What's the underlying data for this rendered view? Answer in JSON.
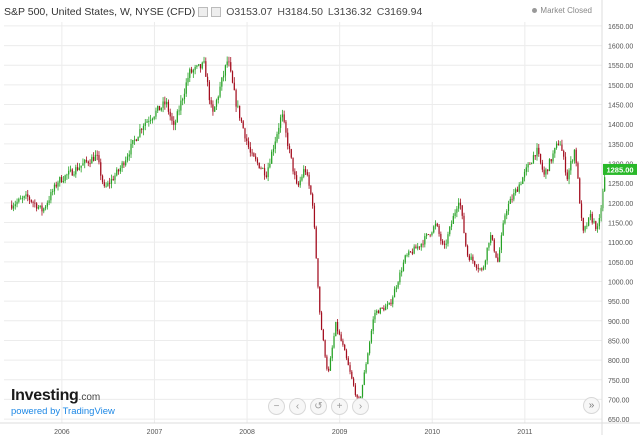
{
  "header": {
    "instrument": "S&P 500, United States, W, NYSE (CFD)",
    "open_key": "O",
    "open": "3153.07",
    "high_key": "H",
    "high": "3184.50",
    "low_key": "L",
    "low": "3136.32",
    "close_key": "C",
    "close": "3169.94"
  },
  "status": {
    "market": "Market Closed"
  },
  "branding": {
    "name": "Investing",
    "suffix": ".com",
    "powered_by": "powered by TradingView"
  },
  "controls": {
    "zoom_out": "−",
    "zoom_in": "+",
    "scroll_left": "‹",
    "scroll_right": "›",
    "reset": "↺",
    "scroll_to_end": "»",
    "icons": [
      "minus-icon",
      "scroll-left-icon",
      "reset-icon",
      "plus-icon",
      "scroll-right-icon",
      "double-chevron-right-icon"
    ]
  },
  "colors": {
    "up": "#26a225",
    "down": "#a30d1e",
    "price_tag": "#29b829",
    "grid": "#ececec"
  },
  "chart_data": {
    "type": "candlestick",
    "title": "S&P 500, United States, W, NYSE (CFD)",
    "interval": "weekly",
    "ylim": [
      640,
      1660
    ],
    "yticks": [
      650,
      700,
      750,
      800,
      850,
      900,
      950,
      1000,
      1050,
      1100,
      1150,
      1200,
      1250,
      1300,
      1350,
      1400,
      1450,
      1500,
      1550,
      1600,
      1650
    ],
    "xlim": [
      "2005-05",
      "2011-10"
    ],
    "xticks": [
      "2006",
      "2007",
      "2008",
      "2009",
      "2010",
      "2011"
    ],
    "last_price_label": "1285.00",
    "close_path": [
      {
        "date": "2005-06",
        "close": 1195
      },
      {
        "date": "2005-08",
        "close": 1215
      },
      {
        "date": "2005-10",
        "close": 1180
      },
      {
        "date": "2005-12",
        "close": 1255
      },
      {
        "date": "2006-03",
        "close": 1295
      },
      {
        "date": "2006-05",
        "close": 1320
      },
      {
        "date": "2006-06",
        "close": 1235
      },
      {
        "date": "2006-08",
        "close": 1285
      },
      {
        "date": "2006-11",
        "close": 1400
      },
      {
        "date": "2007-02",
        "close": 1455
      },
      {
        "date": "2007-03",
        "close": 1390
      },
      {
        "date": "2007-05",
        "close": 1530
      },
      {
        "date": "2007-07",
        "close": 1550
      },
      {
        "date": "2007-08",
        "close": 1420
      },
      {
        "date": "2007-10",
        "close": 1565
      },
      {
        "date": "2007-11",
        "close": 1460
      },
      {
        "date": "2008-01",
        "close": 1320
      },
      {
        "date": "2008-03",
        "close": 1275
      },
      {
        "date": "2008-05",
        "close": 1425
      },
      {
        "date": "2008-07",
        "close": 1235
      },
      {
        "date": "2008-08",
        "close": 1290
      },
      {
        "date": "2008-09",
        "close": 1200
      },
      {
        "date": "2008-10",
        "close": 900
      },
      {
        "date": "2008-11",
        "close": 760
      },
      {
        "date": "2008-12",
        "close": 890
      },
      {
        "date": "2009-01",
        "close": 830
      },
      {
        "date": "2009-03",
        "close": 683
      },
      {
        "date": "2009-05",
        "close": 920
      },
      {
        "date": "2009-07",
        "close": 940
      },
      {
        "date": "2009-09",
        "close": 1060
      },
      {
        "date": "2009-11",
        "close": 1095
      },
      {
        "date": "2010-01",
        "close": 1145
      },
      {
        "date": "2010-02",
        "close": 1080
      },
      {
        "date": "2010-04",
        "close": 1215
      },
      {
        "date": "2010-05",
        "close": 1070
      },
      {
        "date": "2010-07",
        "close": 1025
      },
      {
        "date": "2010-08",
        "close": 1120
      },
      {
        "date": "2010-09",
        "close": 1050
      },
      {
        "date": "2010-10",
        "close": 1180
      },
      {
        "date": "2010-12",
        "close": 1255
      },
      {
        "date": "2011-02",
        "close": 1335
      },
      {
        "date": "2011-03",
        "close": 1270
      },
      {
        "date": "2011-05",
        "close": 1360
      },
      {
        "date": "2011-06",
        "close": 1265
      },
      {
        "date": "2011-07",
        "close": 1340
      },
      {
        "date": "2011-08",
        "close": 1120
      },
      {
        "date": "2011-09",
        "close": 1165
      },
      {
        "date": "2011-10",
        "close": 1130
      },
      {
        "date": "2011-11",
        "close": 1285
      }
    ]
  }
}
